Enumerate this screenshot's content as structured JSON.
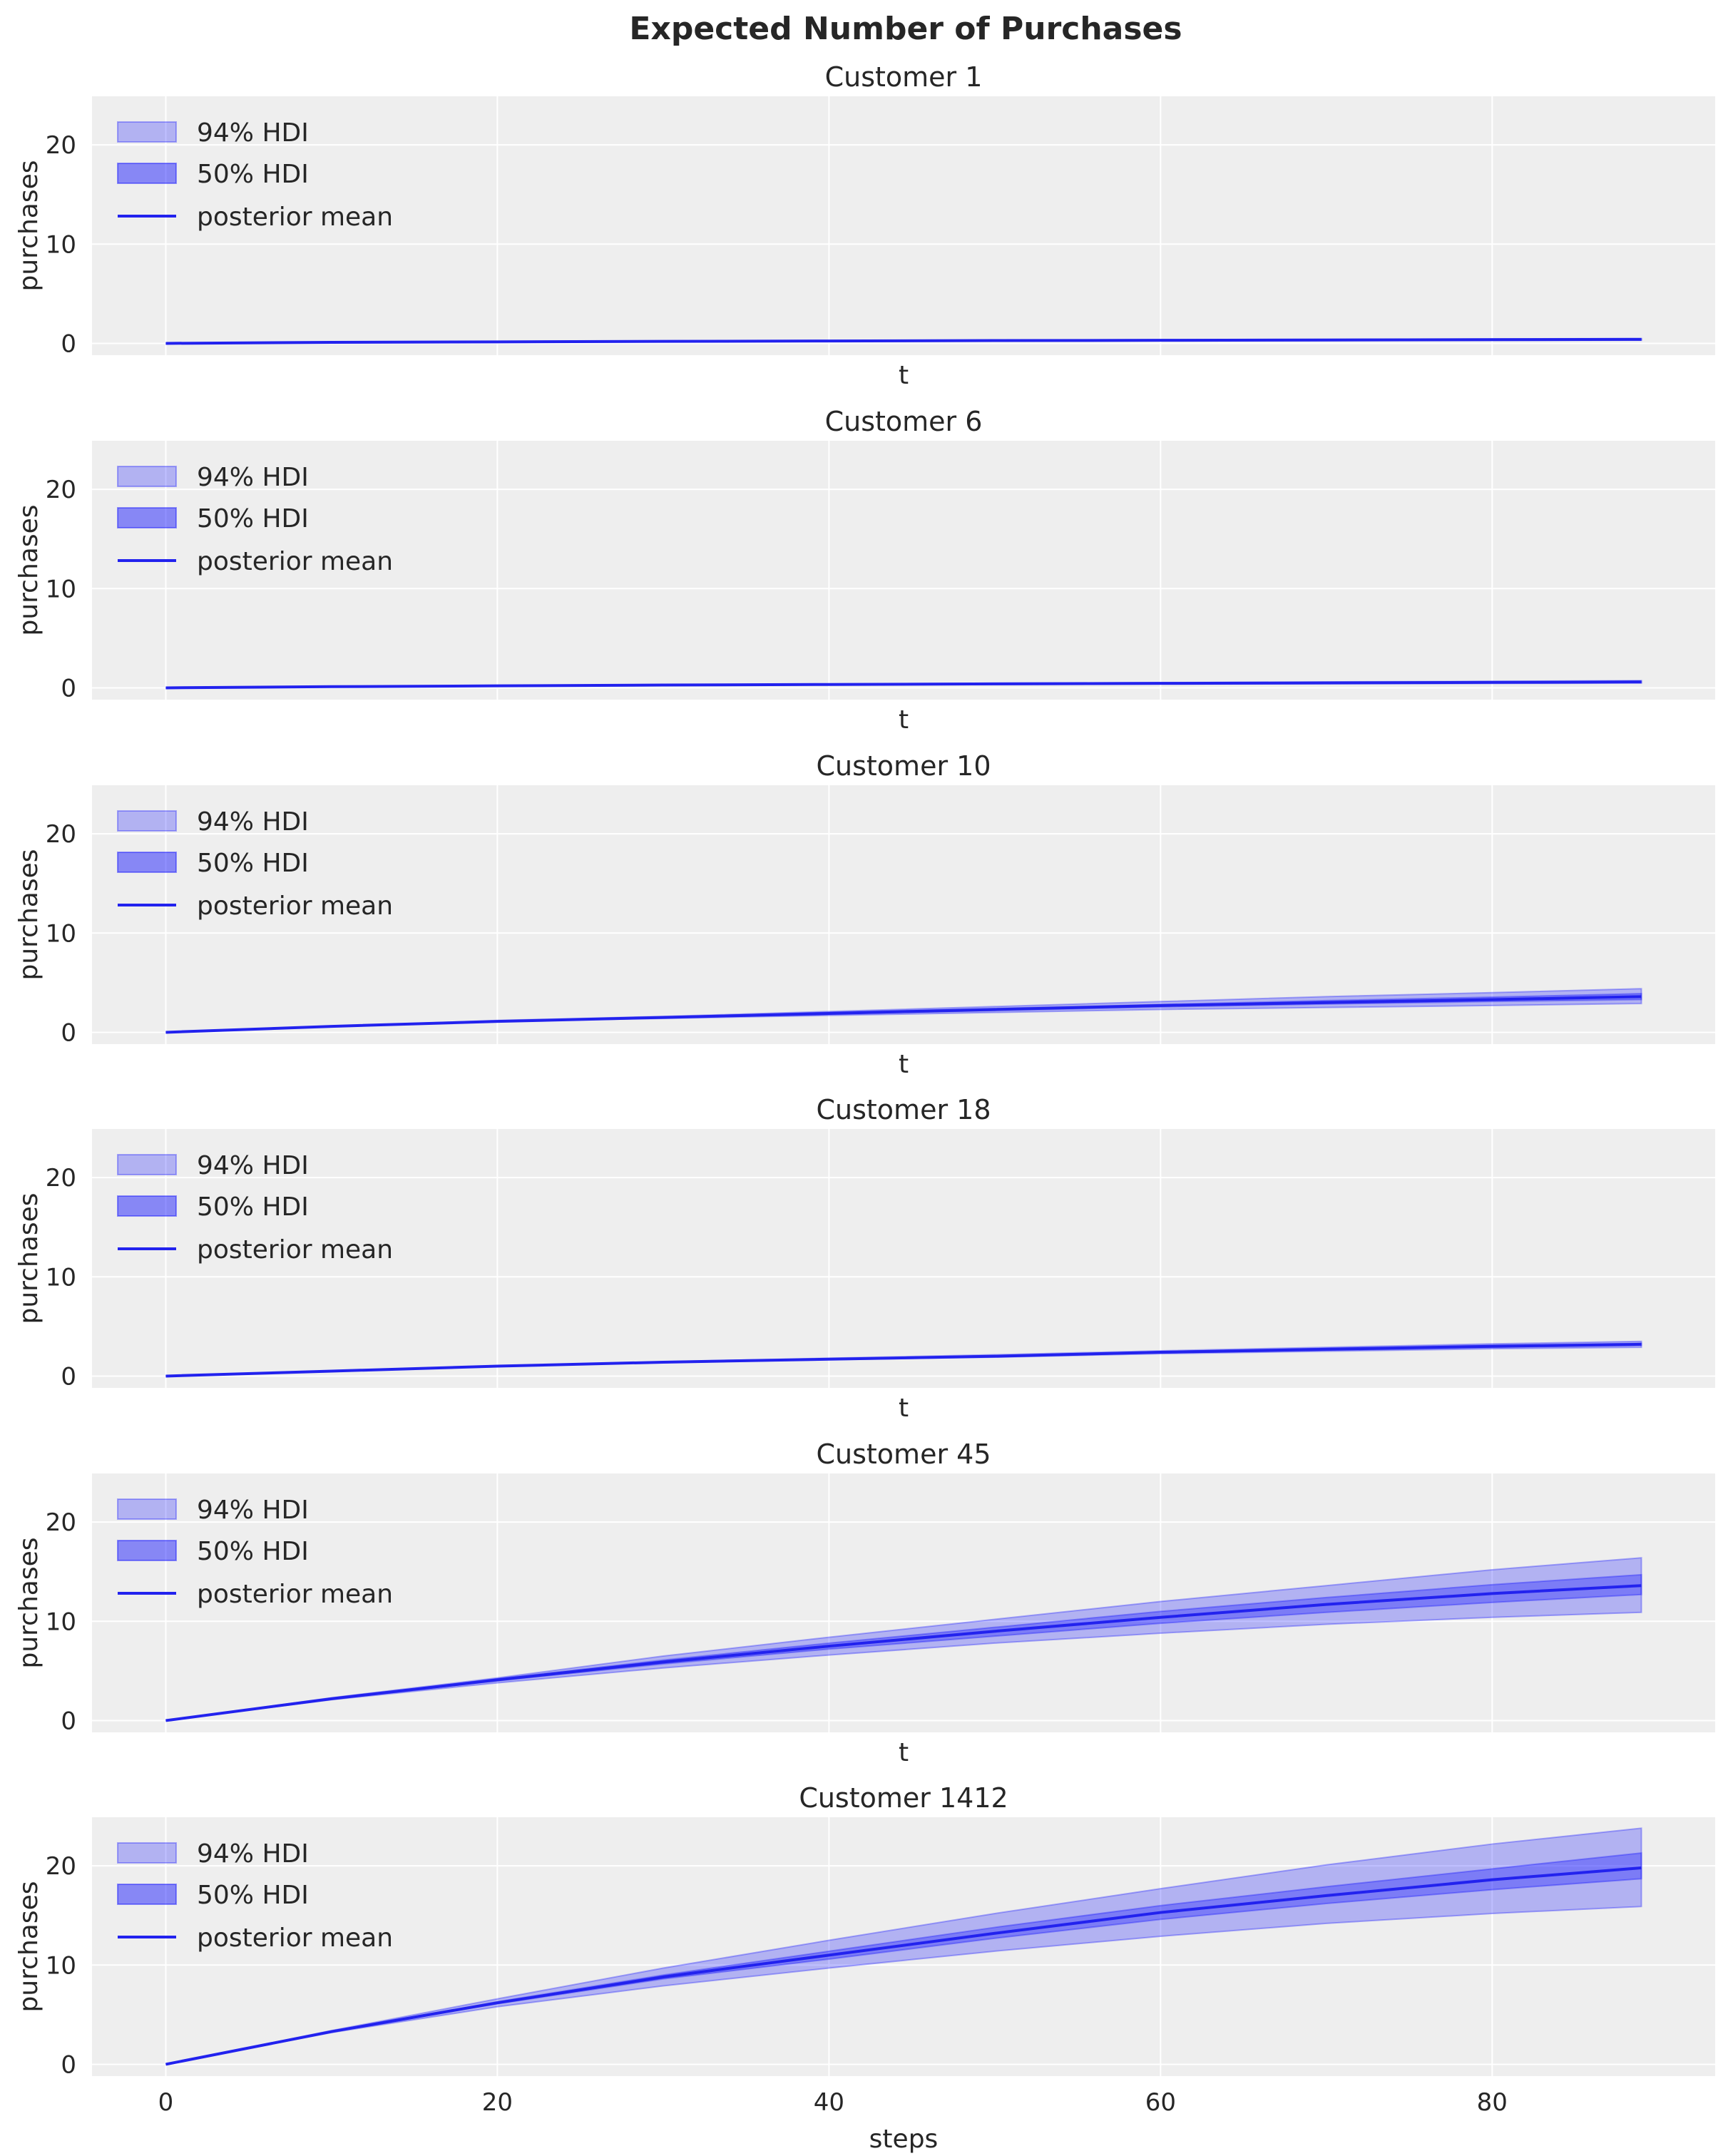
{
  "chart_data": {
    "type": "line",
    "title": "Expected Number of Purchases",
    "xlim": [
      -4.45,
      93.45
    ],
    "ylim": [
      -1.19,
      24.9
    ],
    "xticks": [
      0,
      20,
      40,
      60,
      80
    ],
    "yticks": [
      0,
      10,
      20
    ],
    "grid": true,
    "legend_placement": "upper-left",
    "legend": [
      "94% HDI",
      "50% HDI",
      "posterior mean"
    ],
    "colors": {
      "hdi94": "#0000ff",
      "hdi50": "#0000ff",
      "mean": "#2222ee",
      "background": "#eeeeee",
      "grid": "#ffffff"
    },
    "x": [
      0,
      10,
      20,
      30,
      40,
      50,
      60,
      70,
      80,
      89
    ],
    "panels": [
      {
        "title": "Customer 1",
        "xlabel": "t",
        "ylabel": "purchases",
        "mean": [
          0,
          0.1,
          0.15,
          0.2,
          0.24,
          0.28,
          0.31,
          0.34,
          0.37,
          0.4
        ],
        "hdi94_low": [
          0,
          0.09,
          0.13,
          0.17,
          0.2,
          0.23,
          0.25,
          0.27,
          0.29,
          0.31
        ],
        "hdi94_high": [
          0,
          0.11,
          0.17,
          0.23,
          0.28,
          0.33,
          0.37,
          0.41,
          0.45,
          0.49
        ],
        "hdi50_low": [
          0,
          0.1,
          0.14,
          0.19,
          0.22,
          0.26,
          0.29,
          0.31,
          0.34,
          0.36
        ],
        "hdi50_high": [
          0,
          0.1,
          0.16,
          0.21,
          0.26,
          0.3,
          0.33,
          0.37,
          0.4,
          0.44
        ]
      },
      {
        "title": "Customer 6",
        "xlabel": "t",
        "ylabel": "purchases",
        "mean": [
          0,
          0.12,
          0.2,
          0.28,
          0.34,
          0.4,
          0.45,
          0.5,
          0.55,
          0.6
        ],
        "hdi94_low": [
          0,
          0.11,
          0.18,
          0.24,
          0.29,
          0.33,
          0.37,
          0.4,
          0.44,
          0.47
        ],
        "hdi94_high": [
          0,
          0.13,
          0.22,
          0.32,
          0.39,
          0.47,
          0.53,
          0.6,
          0.66,
          0.73
        ],
        "hdi50_low": [
          0,
          0.12,
          0.19,
          0.26,
          0.32,
          0.37,
          0.42,
          0.46,
          0.5,
          0.55
        ],
        "hdi50_high": [
          0,
          0.12,
          0.21,
          0.3,
          0.36,
          0.43,
          0.48,
          0.54,
          0.6,
          0.65
        ]
      },
      {
        "title": "Customer 10",
        "xlabel": "t",
        "ylabel": "purchases",
        "mean": [
          0,
          0.6,
          1.1,
          1.5,
          1.9,
          2.3,
          2.7,
          3.0,
          3.3,
          3.6
        ],
        "hdi94_low": [
          0,
          0.6,
          1.1,
          1.4,
          1.7,
          2.0,
          2.3,
          2.5,
          2.7,
          2.9
        ],
        "hdi94_high": [
          0,
          0.6,
          1.2,
          1.6,
          2.1,
          2.6,
          3.1,
          3.6,
          4.0,
          4.4
        ],
        "hdi50_low": [
          0,
          0.6,
          1.1,
          1.5,
          1.85,
          2.2,
          2.55,
          2.85,
          3.1,
          3.3
        ],
        "hdi50_high": [
          0,
          0.6,
          1.15,
          1.55,
          2.0,
          2.4,
          2.8,
          3.2,
          3.55,
          3.9
        ]
      },
      {
        "title": "Customer 18",
        "xlabel": "t",
        "ylabel": "purchases",
        "mean": [
          0,
          0.5,
          1.0,
          1.4,
          1.7,
          2.0,
          2.4,
          2.7,
          3.0,
          3.2
        ],
        "hdi94_low": [
          0,
          0.5,
          1.0,
          1.35,
          1.65,
          1.9,
          2.25,
          2.5,
          2.75,
          2.9
        ],
        "hdi94_high": [
          0,
          0.5,
          1.0,
          1.45,
          1.8,
          2.15,
          2.55,
          2.9,
          3.25,
          3.5
        ],
        "hdi50_low": [
          0,
          0.5,
          1.0,
          1.38,
          1.68,
          1.96,
          2.34,
          2.62,
          2.9,
          3.1
        ],
        "hdi50_high": [
          0,
          0.5,
          1.0,
          1.42,
          1.73,
          2.05,
          2.46,
          2.78,
          3.1,
          3.3
        ]
      },
      {
        "title": "Customer 45",
        "xlabel": "t",
        "ylabel": "purchases",
        "mean": [
          0,
          2.2,
          4.1,
          5.9,
          7.5,
          9.0,
          10.4,
          11.7,
          12.8,
          13.6
        ],
        "hdi94_low": [
          0,
          2.1,
          3.8,
          5.3,
          6.6,
          7.8,
          8.8,
          9.7,
          10.4,
          10.9
        ],
        "hdi94_high": [
          0,
          2.3,
          4.3,
          6.5,
          8.4,
          10.2,
          12.0,
          13.6,
          15.2,
          16.4
        ],
        "hdi50_low": [
          0,
          2.2,
          4.0,
          5.7,
          7.2,
          8.5,
          9.8,
          10.9,
          11.9,
          12.7
        ],
        "hdi50_high": [
          0,
          2.2,
          4.2,
          6.1,
          7.8,
          9.4,
          11.0,
          12.4,
          13.7,
          14.7
        ]
      },
      {
        "title": "Customer 1412",
        "xlabel": "steps",
        "ylabel": "purchases",
        "mean": [
          0,
          3.3,
          6.2,
          8.8,
          11.0,
          13.2,
          15.3,
          17.0,
          18.6,
          19.8
        ],
        "hdi94_low": [
          0,
          3.2,
          5.8,
          7.9,
          9.7,
          11.4,
          12.9,
          14.2,
          15.2,
          15.9
        ],
        "hdi94_high": [
          0,
          3.4,
          6.6,
          9.7,
          12.5,
          15.2,
          17.7,
          20.1,
          22.2,
          23.8
        ],
        "hdi50_low": [
          0,
          3.3,
          6.1,
          8.6,
          10.6,
          12.7,
          14.6,
          16.2,
          17.6,
          18.7
        ],
        "hdi50_high": [
          0,
          3.3,
          6.3,
          9.0,
          11.4,
          13.8,
          16.0,
          17.9,
          19.7,
          21.3
        ]
      }
    ]
  }
}
